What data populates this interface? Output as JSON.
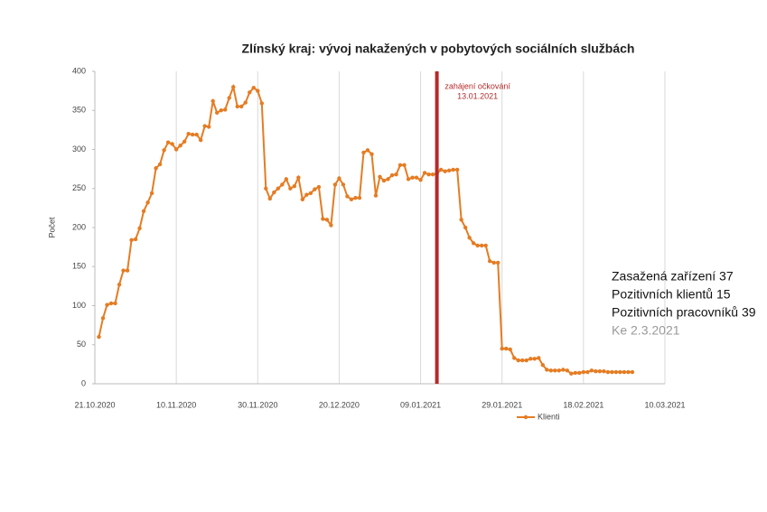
{
  "chart_data": {
    "type": "line",
    "title": "Zlínský kraj: vývoj nakažených v pobytových sociálních službách",
    "y_label": "Počet",
    "x": [
      "22.10.2020",
      "23.10.2020",
      "24.10.2020",
      "25.10.2020",
      "26.10.2020",
      "27.10.2020",
      "28.10.2020",
      "29.10.2020",
      "30.10.2020",
      "31.10.2020",
      "01.11.2020",
      "02.11.2020",
      "03.11.2020",
      "04.11.2020",
      "05.11.2020",
      "06.11.2020",
      "07.11.2020",
      "08.11.2020",
      "09.11.2020",
      "10.11.2020",
      "11.11.2020",
      "12.11.2020",
      "13.11.2020",
      "14.11.2020",
      "15.11.2020",
      "16.11.2020",
      "17.11.2020",
      "18.11.2020",
      "19.11.2020",
      "20.11.2020",
      "21.11.2020",
      "22.11.2020",
      "23.11.2020",
      "24.11.2020",
      "25.11.2020",
      "26.11.2020",
      "27.11.2020",
      "28.11.2020",
      "29.11.2020",
      "30.11.2020",
      "01.12.2020",
      "02.12.2020",
      "03.12.2020",
      "04.12.2020",
      "05.12.2020",
      "06.12.2020",
      "07.12.2020",
      "08.12.2020",
      "09.12.2020",
      "10.12.2020",
      "11.12.2020",
      "12.12.2020",
      "13.12.2020",
      "14.12.2020",
      "15.12.2020",
      "16.12.2020",
      "17.12.2020",
      "18.12.2020",
      "19.12.2020",
      "20.12.2020",
      "21.12.2020",
      "22.12.2020",
      "23.12.2020",
      "24.12.2020",
      "25.12.2020",
      "26.12.2020",
      "27.12.2020",
      "28.12.2020",
      "29.12.2020",
      "30.12.2020",
      "31.12.2020",
      "01.01.2021",
      "02.01.2021",
      "03.01.2021",
      "04.01.2021",
      "05.01.2021",
      "06.01.2021",
      "07.01.2021",
      "08.01.2021",
      "09.01.2021",
      "10.01.2021",
      "11.01.2021",
      "12.01.2021",
      "13.01.2021",
      "14.01.2021",
      "15.01.2021",
      "16.01.2021",
      "17.01.2021",
      "18.01.2021",
      "19.01.2021",
      "20.01.2021",
      "21.01.2021",
      "22.01.2021",
      "23.01.2021",
      "24.01.2021",
      "25.01.2021",
      "26.01.2021",
      "27.01.2021",
      "28.01.2021",
      "29.01.2021",
      "30.01.2021",
      "31.01.2021",
      "01.02.2021",
      "02.02.2021",
      "03.02.2021",
      "04.02.2021",
      "05.02.2021",
      "06.02.2021",
      "07.02.2021",
      "08.02.2021",
      "09.02.2021",
      "10.02.2021",
      "11.02.2021",
      "12.02.2021",
      "13.02.2021",
      "14.02.2021",
      "15.02.2021",
      "16.02.2021",
      "17.02.2021",
      "18.02.2021",
      "19.02.2021",
      "20.02.2021",
      "21.02.2021",
      "22.02.2021",
      "23.02.2021",
      "24.02.2021",
      "25.02.2021",
      "26.02.2021",
      "27.02.2021",
      "28.02.2021",
      "01.03.2021",
      "02.03.2021"
    ],
    "series": [
      {
        "name": "Klienti",
        "color": "#e57c23",
        "values": [
          60,
          84,
          101,
          103,
          103,
          127,
          145,
          145,
          184,
          185,
          199,
          221,
          232,
          244,
          276,
          281,
          299,
          309,
          307,
          300,
          305,
          310,
          320,
          319,
          319,
          312,
          330,
          329,
          362,
          347,
          350,
          351,
          366,
          380,
          355,
          355,
          360,
          373,
          379,
          375,
          359,
          250,
          237,
          245,
          250,
          255,
          262,
          250,
          253,
          264,
          236,
          242,
          244,
          249,
          252,
          211,
          210,
          203,
          255,
          263,
          255,
          240,
          236,
          238,
          238,
          296,
          299,
          294,
          241,
          265,
          260,
          262,
          267,
          268,
          280,
          280,
          262,
          264,
          264,
          261,
          270,
          268,
          268,
          269,
          274,
          272,
          273,
          274,
          274,
          210,
          200,
          187,
          180,
          177,
          177,
          177,
          157,
          155,
          155,
          45,
          45,
          44,
          33,
          30,
          30,
          30,
          32,
          32,
          33,
          24,
          18,
          17,
          17,
          17,
          18,
          17,
          13,
          14,
          14,
          15,
          15,
          17,
          16,
          16,
          16,
          15,
          15,
          15,
          15,
          15,
          15,
          15
        ]
      }
    ],
    "xlim": [
      "21.10.2020",
      "10.03.2021"
    ],
    "xticks": [
      "21.10.2020",
      "10.11.2020",
      "30.11.2020",
      "20.12.2020",
      "09.01.2021",
      "29.01.2021",
      "18.02.2021",
      "10.03.2021"
    ],
    "ylim": [
      0,
      400
    ],
    "yticks": [
      0,
      50,
      100,
      150,
      200,
      250,
      300,
      350,
      400
    ],
    "grid": "x",
    "legend": "bottom",
    "annotations": [
      {
        "x": "13.01.2021",
        "text": "zahájení očkování",
        "color": "#b52a2a"
      }
    ],
    "side_text": [
      "Zasažená zařízení 37",
      "Pozitivních klientů 15",
      "Pozitivních pracovníků 39",
      "Ke 2.3.2021"
    ]
  }
}
